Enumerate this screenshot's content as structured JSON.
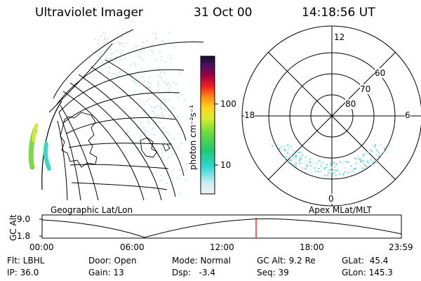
{
  "header": {
    "instrument": "Ultraviolet Imager",
    "date": "31 Oct 00",
    "time": "14:18:56 UT"
  },
  "colorbar": {
    "unit_label": "photon cm⁻²s⁻¹",
    "ticks": [
      "100",
      "10"
    ]
  },
  "polar": {
    "mlt_labels": [
      "12",
      "18",
      "6",
      "0"
    ],
    "mlat_labels": [
      "60",
      "70",
      "80"
    ]
  },
  "panel_titles": {
    "left": "Geographic Lat/Lon",
    "right": "Apex MLat/MLT"
  },
  "altitude_plot": {
    "ylabel": "GC Alt",
    "yticks": [
      "9.0",
      "1.8"
    ],
    "xticks": [
      "00:00",
      "06:00",
      "12:00",
      "18:00",
      "23:59"
    ],
    "current_marker_time": "14:18:56",
    "marker_color": "#e00000"
  },
  "info": {
    "row1": {
      "flt": "Flt: LBHL",
      "door": "Door: Open",
      "mode": "Mode: Normal",
      "gcalt": "GC Alt: 9.2 Re",
      "glat": "GLat:  45.4"
    },
    "row2": {
      "ip": "IP: 36.0",
      "gain": "Gain: 13",
      "dsp": "Dsp:   -3.4",
      "seq": "Seq: 39",
      "glon": "GLon: 145.3"
    }
  }
}
